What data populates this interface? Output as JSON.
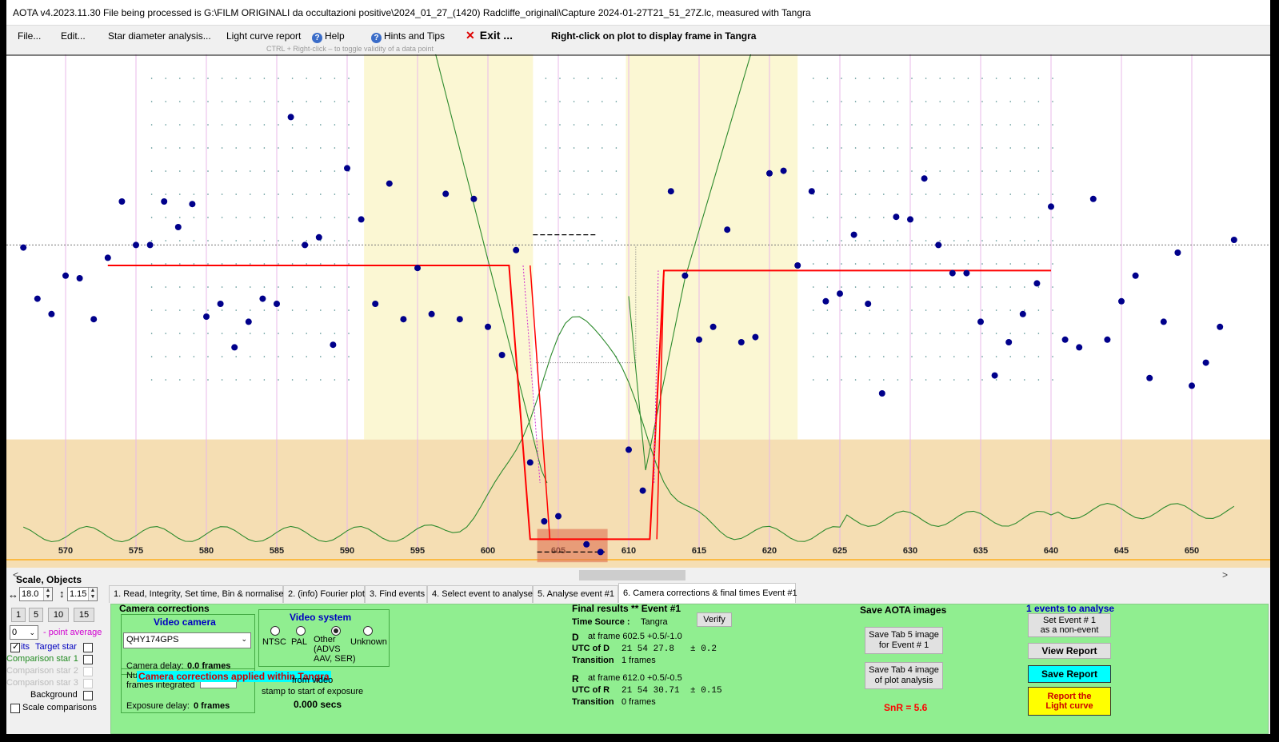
{
  "window": {
    "title": "AOTA v4.2023.11.30    File being processed is G:\\FILM ORIGINALI da occultazioni positive\\2024_01_27_(1420) Radcliffe_originali\\Capture 2024-01-27T21_51_27Z.lc, measured with Tangra"
  },
  "menu": {
    "file": "File...",
    "edit": "Edit...",
    "star_diameter": "Star diameter analysis...",
    "light_curve_report": "Light curve report",
    "help": "Help",
    "hints": "Hints and Tips",
    "exit": "Exit ...",
    "right_click_hint": "Right-click on plot to display frame in Tangra",
    "ctrl_hint": "CTRL + Right-click  –  to toggle validity of a data point",
    "help_icon": "question-icon",
    "exit_icon": "close-icon"
  },
  "colors": {
    "event_band": "#fbf7d3",
    "lower_band": "#f5deb3",
    "data_points": "#00008b",
    "model_line": "#ff0000",
    "noise_curve": "#2e8b2e",
    "baseline": "#ffa500",
    "tab_page": "#90ee90",
    "save_report_btn": "#00ffff",
    "report_light_curve_btn": "#ffff00",
    "snr": "#ff0000"
  },
  "chart_data": {
    "type": "scatter",
    "xlim": [
      567,
      653
    ],
    "x_ticks": [
      "570",
      "575",
      "580",
      "585",
      "590",
      "595",
      "600",
      "605",
      "610",
      "615",
      "620",
      "625",
      "630",
      "635",
      "640",
      "645",
      "650"
    ],
    "points": [
      [
        567,
        0.87
      ],
      [
        568,
        0.67
      ],
      [
        569,
        0.61
      ],
      [
        570,
        0.76
      ],
      [
        571,
        0.75
      ],
      [
        572,
        0.59
      ],
      [
        573,
        0.83
      ],
      [
        574,
        1.05
      ],
      [
        575,
        0.88
      ],
      [
        576,
        0.88
      ],
      [
        577,
        1.05
      ],
      [
        578,
        0.95
      ],
      [
        579,
        1.04
      ],
      [
        580,
        0.6
      ],
      [
        581,
        0.65
      ],
      [
        582,
        0.48
      ],
      [
        583,
        0.58
      ],
      [
        584,
        0.67
      ],
      [
        585,
        0.65
      ],
      [
        586,
        1.38
      ],
      [
        587,
        0.88
      ],
      [
        588,
        0.91
      ],
      [
        589,
        0.49
      ],
      [
        590,
        1.18
      ],
      [
        591,
        0.98
      ],
      [
        592,
        0.65
      ],
      [
        593,
        1.12
      ],
      [
        594,
        0.59
      ],
      [
        595,
        0.79
      ],
      [
        596,
        0.61
      ],
      [
        597,
        1.08
      ],
      [
        598,
        0.59
      ],
      [
        599,
        1.06
      ],
      [
        600,
        0.56
      ],
      [
        601,
        0.45
      ],
      [
        602,
        0.86
      ],
      [
        603,
        0.03
      ],
      [
        604,
        -0.2
      ],
      [
        605,
        -0.18
      ],
      [
        606,
        -0.42
      ],
      [
        607,
        -0.29
      ],
      [
        608,
        -0.32
      ],
      [
        609,
        -0.55
      ],
      [
        610,
        0.08
      ],
      [
        611,
        -0.08
      ],
      [
        612,
        -0.43
      ],
      [
        613,
        1.09
      ],
      [
        614,
        0.76
      ],
      [
        615,
        0.51
      ],
      [
        616,
        0.56
      ],
      [
        617,
        0.94
      ],
      [
        618,
        0.5
      ],
      [
        619,
        0.52
      ],
      [
        620,
        1.16
      ],
      [
        621,
        1.17
      ],
      [
        622,
        0.8
      ],
      [
        623,
        1.09
      ],
      [
        624,
        0.66
      ],
      [
        625,
        0.69
      ],
      [
        626,
        0.92
      ],
      [
        627,
        0.65
      ],
      [
        628,
        0.3
      ],
      [
        629,
        0.99
      ],
      [
        630,
        0.98
      ],
      [
        631,
        1.14
      ],
      [
        632,
        0.88
      ],
      [
        633,
        0.77
      ],
      [
        634,
        0.77
      ],
      [
        635,
        0.58
      ],
      [
        636,
        0.37
      ],
      [
        637,
        0.5
      ],
      [
        638,
        0.61
      ],
      [
        639,
        0.73
      ],
      [
        640,
        1.03
      ],
      [
        641,
        0.51
      ],
      [
        642,
        0.48
      ],
      [
        643,
        1.06
      ],
      [
        644,
        0.51
      ],
      [
        645,
        0.66
      ],
      [
        646,
        0.76
      ],
      [
        647,
        0.36
      ],
      [
        648,
        0.58
      ],
      [
        649,
        0.85
      ],
      [
        650,
        0.33
      ],
      [
        651,
        0.42
      ],
      [
        652,
        0.56
      ],
      [
        653,
        0.9
      ]
    ],
    "model": {
      "baseline_left": 0.8,
      "baseline_right": 0.78,
      "event_level": -0.27,
      "start_frame": 573,
      "end_frame": 640,
      "D_frame": 602.5,
      "R_frame": 612.0
    }
  },
  "tabs": [
    {
      "label": "1.  Read, Integrity, Set time, Bin & normalise"
    },
    {
      "label": "2. (info)  Fourier plot"
    },
    {
      "label": "3. Find events"
    },
    {
      "label": "4. Select event to analyse"
    },
    {
      "label": "5. Analyse event #1"
    },
    {
      "label": "6. Camera corrections & final times Event #1"
    }
  ],
  "left_panel": {
    "scale_label": "Scale,  Objects",
    "scale_value": "18.0",
    "objects_value": "1.15",
    "btn1": "1",
    "btn5": "5",
    "btn10": "10",
    "btn15": "15",
    "point_avg_value": "0",
    "point_average_label": "- point average",
    "target_star": "Target star",
    "its": "its",
    "comp1": "Comparison star 1",
    "comp2": "Comparison star 2",
    "comp3": "Comparison star 3",
    "background": "Background",
    "scale_comparisons": "Scale comparisons"
  },
  "camera": {
    "title": "Camera corrections",
    "video_camera_label": "Video camera",
    "camera_value": "QHY174GPS",
    "camera_delay_label": "Camera delay:",
    "camera_delay_value": "0.0 frames",
    "video_system_label": "Video system",
    "ntsc": "NTSC",
    "pal": "PAL",
    "other": "Other\n(ADVS\nAAV, SER)",
    "unknown": "Unknown",
    "frames_integrated": "Num\nframes integrated",
    "applied_in_tangra": "Camera corrections applied within Tangra",
    "exposure_delay_label": "Exposure delay:",
    "exposure_delay_value": "0 frames",
    "from_video": "from video\nstamp to start of exposure",
    "secs_value": "0.000 secs"
  },
  "final": {
    "title": "Final results  **  Event #1",
    "time_source_label": "Time Source :",
    "time_source_value": "Tangra",
    "verify": "Verify",
    "d_label": "D",
    "d_frame": "at frame 602.5  +0.5/-1.0",
    "utc_d_label": "UTC of D",
    "utc_d_value": "21 54 27.8",
    "utc_d_err": "± 0.2",
    "trans_label": "Transition",
    "trans_d_value": "1 frames",
    "r_label": "R",
    "r_frame": "at frame 612.0  +0.5/-0.5",
    "utc_r_label": "UTC of R",
    "utc_r_value": "21 54 30.71",
    "utc_r_err": "± 0.15",
    "trans_r_value": "0 frames"
  },
  "save": {
    "title": "Save AOTA images",
    "tab5": "Save Tab 5 image\nfor Event # 1",
    "tab4": "Save Tab 4 image\nof plot analysis",
    "snr": "SnR = 5.6"
  },
  "events": {
    "title": "1  events to analyse",
    "set_event": "Set Event # 1\nas a non-event",
    "view_report": "View Report",
    "save_report": "Save Report",
    "report_light_curve": "Report the\nLight curve"
  }
}
